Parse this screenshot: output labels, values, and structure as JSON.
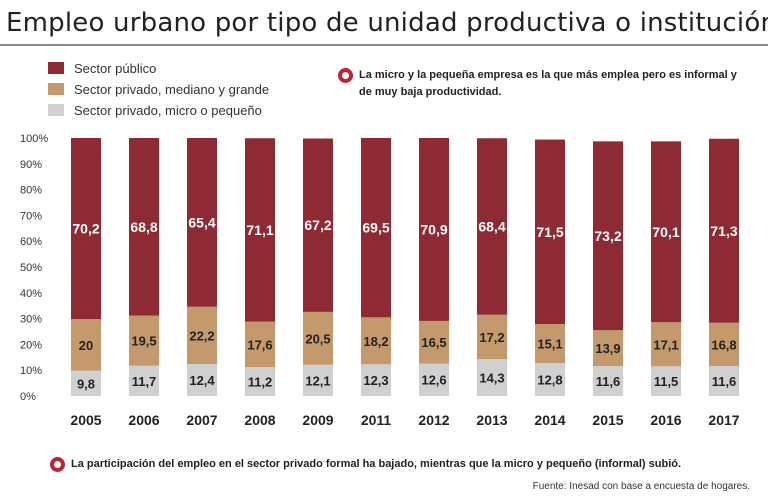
{
  "title": "Empleo urbano por tipo de unidad productiva o institución",
  "legend": [
    {
      "label": "Sector público",
      "color": "#8e2a33"
    },
    {
      "label": "Sector privado, mediano y grande",
      "color": "#c49a6c"
    },
    {
      "label": "Sector privado, micro o pequeño",
      "color": "#d0d0d0"
    }
  ],
  "notes": {
    "top": "La micro y la pequeña empresa es la que más emplea pero es informal y de muy baja productividad.",
    "bottom": "La participación del empleo en el sector privado formal ha bajado, mientras que la micro y pequeño (informal) subió."
  },
  "source": "Fuente: Inesad con base a encuesta de hogares.",
  "chart_data": {
    "type": "bar",
    "stacked": true,
    "title": "Empleo urbano por tipo de unidad productiva o institución",
    "categories": [
      "2005",
      "2006",
      "2007",
      "2008",
      "2009",
      "2011",
      "2012",
      "2013",
      "2014",
      "2015",
      "2016",
      "2017"
    ],
    "series": [
      {
        "name": "Sector privado, micro o pequeño",
        "color": "#d0d0d0",
        "values": [
          9.8,
          11.7,
          12.4,
          11.2,
          12.1,
          12.3,
          12.6,
          14.3,
          12.8,
          11.6,
          11.5,
          11.6
        ],
        "labels": [
          "9,8",
          "11,7",
          "12,4",
          "11,2",
          "12,1",
          "12,3",
          "12,6",
          "14,3",
          "12,8",
          "11,6",
          "11,5",
          "11,6"
        ]
      },
      {
        "name": "Sector privado, mediano y grande",
        "color": "#c49a6c",
        "values": [
          20,
          19.5,
          22.2,
          17.6,
          20.5,
          18.2,
          16.5,
          17.2,
          15.1,
          13.9,
          17.1,
          16.8
        ],
        "labels": [
          "20",
          "19,5",
          "22,2",
          "17,6",
          "20,5",
          "18,2",
          "16,5",
          "17,2",
          "15,1",
          "13,9",
          "17,1",
          "16,8"
        ]
      },
      {
        "name": "Sector público",
        "color": "#8e2a33",
        "values": [
          70.2,
          68.8,
          65.4,
          71.1,
          67.2,
          69.5,
          70.9,
          68.4,
          71.5,
          73.2,
          70.1,
          71.3
        ],
        "labels": [
          "70,2",
          "68,8",
          "65,4",
          "71,1",
          "67,2",
          "69,5",
          "70,9",
          "68,4",
          "71,5",
          "73,2",
          "70,1",
          "71,3"
        ]
      }
    ],
    "ylim": [
      0,
      100
    ],
    "y_ticks": [
      "0%",
      "10%",
      "20%",
      "30%",
      "40%",
      "50%",
      "60%",
      "70%",
      "80%",
      "90%",
      "100%"
    ],
    "legend_position": "top-left",
    "grid": false
  }
}
